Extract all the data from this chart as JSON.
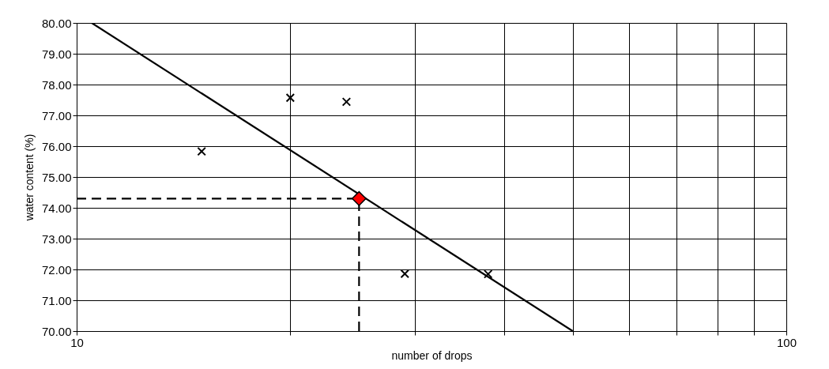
{
  "chart_data": {
    "type": "scatter",
    "xlabel": "number of drops",
    "ylabel": "water content (%)",
    "log": "x",
    "xlim": [
      10,
      100
    ],
    "xticks": [
      10,
      {
        "value": 20,
        "label": null
      },
      {
        "value": 30,
        "label": null
      },
      {
        "value": 40,
        "label": null
      },
      {
        "value": 50,
        "label": null
      },
      {
        "value": 60,
        "label": null
      },
      {
        "value": 70,
        "label": null
      },
      {
        "value": 80,
        "label": null
      },
      {
        "value": 90,
        "label": null
      },
      100
    ],
    "ylim": [
      70,
      80
    ],
    "yticks": [
      {
        "value": 70,
        "label": "70.00"
      },
      {
        "value": 71,
        "label": "71.00"
      },
      {
        "value": 72,
        "label": "72.00"
      },
      {
        "value": 73,
        "label": "73.00"
      },
      {
        "value": 74,
        "label": "74.00"
      },
      {
        "value": 75,
        "label": "75.00"
      },
      {
        "value": 76,
        "label": "76.00"
      },
      {
        "value": 77,
        "label": "77.00"
      },
      {
        "value": 78,
        "label": "78.00"
      },
      {
        "value": 79,
        "label": "79.00"
      },
      {
        "value": 80,
        "label": "80.00"
      }
    ],
    "grid": true,
    "series": [
      {
        "marker": "cross",
        "color": "#000000",
        "x": [
          15,
          20,
          24,
          29,
          38
        ],
        "values": [
          75.83,
          77.57,
          77.44,
          71.86,
          71.85
        ]
      },
      {
        "type": "line",
        "line_style": "solid",
        "color": "#000000",
        "x": [
          10.5,
          50
        ],
        "values": [
          80,
          70
        ]
      },
      {
        "type": "line",
        "line_style": "dashed",
        "color": "#000000",
        "x": [
          10,
          25,
          25
        ],
        "values": [
          74.3,
          74.3,
          70
        ]
      },
      {
        "type": "scatter",
        "marker": "diamond",
        "color": "#ff0000",
        "x": [
          25
        ],
        "values": [
          74.3
        ]
      }
    ]
  }
}
